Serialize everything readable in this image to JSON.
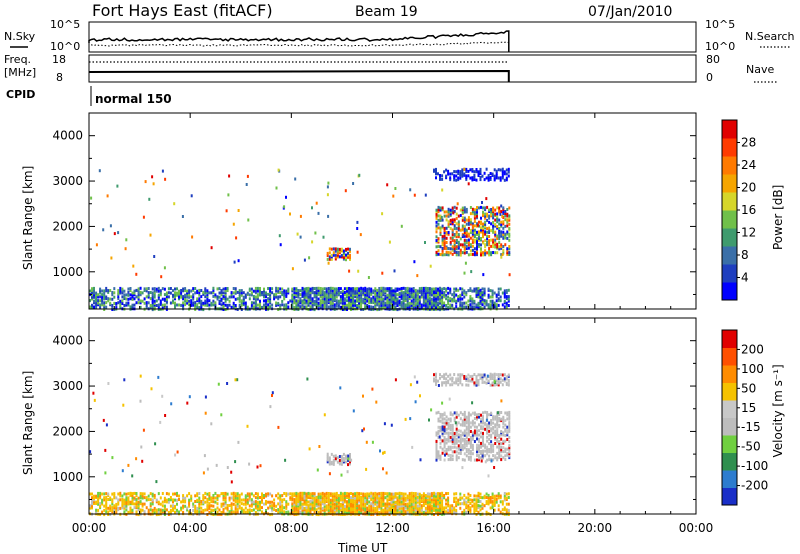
{
  "header": {
    "title": "Fort Hays East (fitACF)",
    "beam": "Beam 19",
    "date": "07/Jan/2010"
  },
  "noise_panel": {
    "left_label": "N.Sky",
    "right_label": "N.Search",
    "left_ticks": [
      "10^5",
      "10^0"
    ],
    "right_ticks": [
      "10^5",
      "10^0"
    ]
  },
  "freq_panel": {
    "left_label_line1": "Freq.",
    "left_label_line2": "[MHz]",
    "right_label": "Nave",
    "left_ticks": [
      "18",
      "8"
    ],
    "right_ticks": [
      "80",
      "0"
    ]
  },
  "cpid": {
    "label": "CPID",
    "value": "normal 150"
  },
  "colors": {
    "power_scale": [
      "#0000ff",
      "#1f3fbf",
      "#3a6fa8",
      "#3f9b6e",
      "#70c04a",
      "#d6d62a",
      "#f5a500",
      "#ff7a00",
      "#ff3b00",
      "#e00000"
    ],
    "velocity_scale": [
      "#1a2fc8",
      "#2d7ccf",
      "#2f8f4f",
      "#70d040",
      "#bdbdbd",
      "#c8c8c8",
      "#f5c200",
      "#ff8c00",
      "#ff5000",
      "#e00000"
    ]
  },
  "chart_data": [
    {
      "type": "heatmap",
      "title": "Power",
      "ylabel": "Slant Range [km]",
      "xlabel": "",
      "xlim": [
        "00:00",
        "24:00"
      ],
      "ylim": [
        180,
        4500
      ],
      "yticks": [
        "1000",
        "2000",
        "3000",
        "4000"
      ],
      "colorbar": {
        "label": "Power [dB]",
        "ticks": [
          "28",
          "24",
          "20",
          "16",
          "12",
          "8",
          "4"
        ],
        "range": [
          0,
          30
        ]
      },
      "regions": [
        {
          "start_hour": 0.0,
          "end_hour": 16.6,
          "range_km": [
            200,
            700
          ],
          "description_value": "4-12"
        },
        {
          "start_hour": 9.4,
          "end_hour": 10.3,
          "range_km": [
            1300,
            1550
          ],
          "description_value": "8-24"
        },
        {
          "start_hour": 13.7,
          "end_hour": 16.6,
          "range_km": [
            1400,
            2500
          ],
          "description_value": "8-28"
        },
        {
          "start_hour": 13.6,
          "end_hour": 16.6,
          "range_km": [
            3050,
            3300
          ],
          "description_value": "4-8"
        }
      ]
    },
    {
      "type": "heatmap",
      "title": "Velocity",
      "ylabel": "Slant Range [km]",
      "xlabel": "Time UT",
      "xlim": [
        "00:00",
        "24:00"
      ],
      "xticks": [
        "00:00",
        "04:00",
        "08:00",
        "12:00",
        "16:00",
        "20:00",
        "00:00"
      ],
      "ylim": [
        180,
        4500
      ],
      "yticks": [
        "1000",
        "2000",
        "3000",
        "4000"
      ],
      "colorbar": {
        "label": "Velocity [m s^-1]",
        "ticks": [
          "200",
          "100",
          "50",
          "15",
          "-15",
          "-50",
          "-100",
          "-200"
        ],
        "range": [
          -250,
          250
        ]
      },
      "regions": [
        {
          "start_hour": 0.0,
          "end_hour": 16.6,
          "range_km": [
            200,
            700
          ],
          "description_value": "-100 to 50"
        },
        {
          "start_hour": 9.4,
          "end_hour": 10.3,
          "range_km": [
            1300,
            1550
          ],
          "description_value": "-15 to 15"
        },
        {
          "start_hour": 13.7,
          "end_hour": 16.6,
          "range_km": [
            1400,
            2500
          ],
          "description_value": "-15 to 15"
        },
        {
          "start_hour": 13.6,
          "end_hour": 16.6,
          "range_km": [
            3050,
            3300
          ],
          "description_value": "-15 to 15"
        }
      ]
    }
  ]
}
